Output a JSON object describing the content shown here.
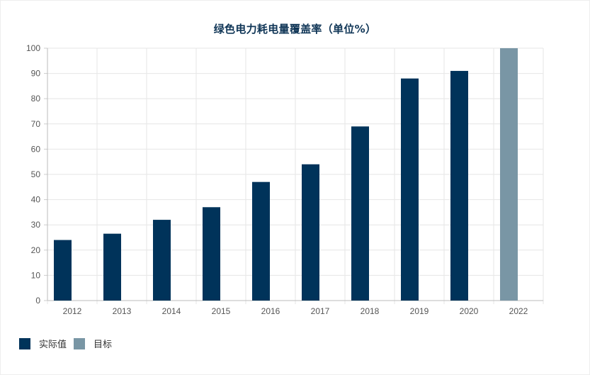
{
  "chart_data": {
    "type": "bar",
    "title": "绿色电力耗电量覆盖率（单位%）",
    "xlabel": "",
    "ylabel": "",
    "ylim": [
      0,
      100
    ],
    "yticks": [
      0,
      10,
      20,
      30,
      40,
      50,
      60,
      70,
      80,
      90,
      100
    ],
    "categories": [
      "2012",
      "2013",
      "2014",
      "2015",
      "2016",
      "2017",
      "2018",
      "2019",
      "2020",
      "2022"
    ],
    "series": [
      {
        "name": "实际值",
        "color": "#00335a",
        "values": [
          24,
          26.5,
          32,
          37,
          47,
          54,
          69,
          88,
          91,
          null
        ]
      },
      {
        "name": "目标",
        "color": "#7996a5",
        "values": [
          null,
          null,
          null,
          null,
          null,
          null,
          null,
          null,
          null,
          100
        ]
      }
    ],
    "grid": true,
    "legend_position": "bottom-left"
  }
}
